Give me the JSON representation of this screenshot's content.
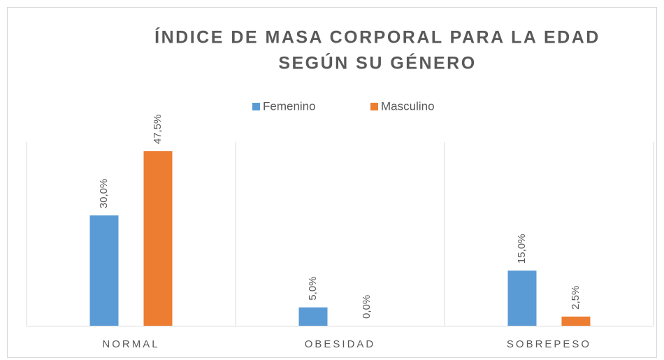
{
  "chart_data": {
    "type": "bar",
    "title": [
      "ÍNDICE DE MASA CORPORAL PARA LA EDAD",
      "SEGÚN SU GÉNERO"
    ],
    "categories": [
      "NORMAL",
      "OBESIDAD",
      "SOBREPESO"
    ],
    "series": [
      {
        "name": "Femenino",
        "color": "#5b9bd5",
        "values": [
          30,
          5,
          15
        ],
        "value_labels": [
          "30,0%",
          "5,0%",
          "15,0%"
        ]
      },
      {
        "name": "Masculino",
        "color": "#ed7d31",
        "values": [
          47.5,
          0,
          2.5
        ],
        "value_labels": [
          "47,5%",
          "0,0%",
          "2,5%"
        ]
      }
    ],
    "ylim": [
      0,
      50
    ],
    "legend": "top"
  }
}
